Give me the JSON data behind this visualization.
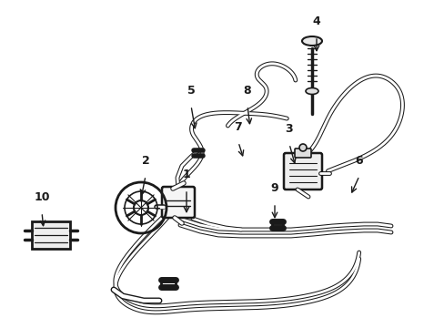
{
  "background_color": "#ffffff",
  "line_color": "#1a1a1a",
  "fig_width": 4.89,
  "fig_height": 3.6,
  "dpi": 100,
  "label_positions": {
    "1": [
      0.415,
      0.52,
      0.408,
      0.488
    ],
    "2": [
      0.31,
      0.548,
      0.318,
      0.51
    ],
    "3": [
      0.63,
      0.518,
      0.638,
      0.488
    ],
    "4": [
      0.7,
      0.87,
      0.706,
      0.83
    ],
    "5": [
      0.395,
      0.66,
      0.405,
      0.625
    ],
    "6": [
      0.815,
      0.435,
      0.8,
      0.408
    ],
    "7": [
      0.53,
      0.568,
      0.522,
      0.538
    ],
    "8": [
      0.555,
      0.668,
      0.558,
      0.635
    ],
    "9": [
      0.62,
      0.385,
      0.615,
      0.358
    ],
    "10": [
      0.092,
      0.448,
      0.11,
      0.428
    ]
  }
}
